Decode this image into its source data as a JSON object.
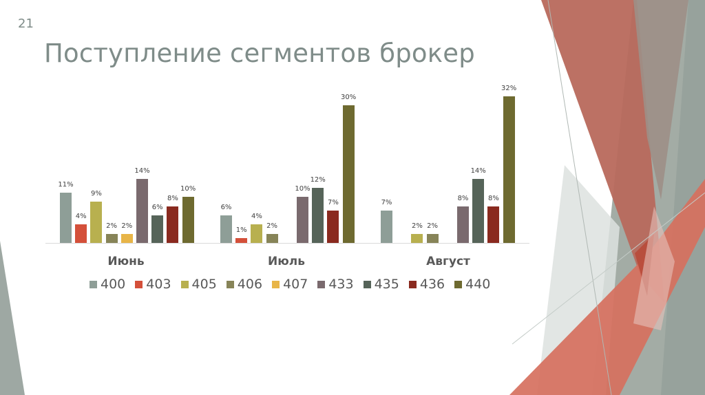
{
  "slide": {
    "number": "21",
    "title": "Поступление сегментов брокер"
  },
  "chart_data": {
    "type": "bar",
    "title": "Поступление сегментов брокер",
    "xlabel": "",
    "ylabel": "",
    "ylim": [
      0,
      35
    ],
    "grid": false,
    "legend_position": "bottom",
    "categories": [
      "Июнь",
      "Июль",
      "Август"
    ],
    "series": [
      {
        "name": "400",
        "color": "#8e9e97",
        "values": [
          11,
          6,
          7
        ]
      },
      {
        "name": "403",
        "color": "#d4503a",
        "values": [
          4,
          1,
          null
        ]
      },
      {
        "name": "405",
        "color": "#b8b04f",
        "values": [
          9,
          4,
          2
        ]
      },
      {
        "name": "406",
        "color": "#878458",
        "values": [
          2,
          2,
          2
        ]
      },
      {
        "name": "407",
        "color": "#e8b548",
        "values": [
          2,
          null,
          null
        ]
      },
      {
        "name": "433",
        "color": "#7a6a6e",
        "values": [
          14,
          10,
          8
        ]
      },
      {
        "name": "435",
        "color": "#566459",
        "values": [
          6,
          12,
          14
        ]
      },
      {
        "name": "436",
        "color": "#8a2a1f",
        "values": [
          8,
          7,
          8
        ]
      },
      {
        "name": "440",
        "color": "#6e6a30",
        "values": [
          10,
          30,
          32
        ]
      }
    ],
    "value_suffix": "%"
  }
}
